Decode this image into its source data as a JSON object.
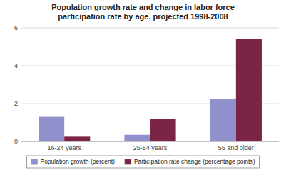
{
  "chart_data": {
    "type": "bar",
    "title": "Population growth rate and change in labor force\nparticipation rate by age, projected 1998-2008",
    "categories": [
      "16-24 years",
      "25-54 years",
      "55 and older"
    ],
    "series": [
      {
        "name": "Population growth (percent)",
        "color": "#9090cc",
        "values": [
          1.3,
          0.35,
          2.25
        ]
      },
      {
        "name": "Participation rate change (percentage points)",
        "color": "#7a2545",
        "values": [
          0.25,
          1.2,
          5.4
        ]
      }
    ],
    "ylim": [
      0,
      6
    ],
    "yticks": [
      0,
      2,
      4,
      6
    ],
    "grid": true,
    "legend": "bottom"
  }
}
